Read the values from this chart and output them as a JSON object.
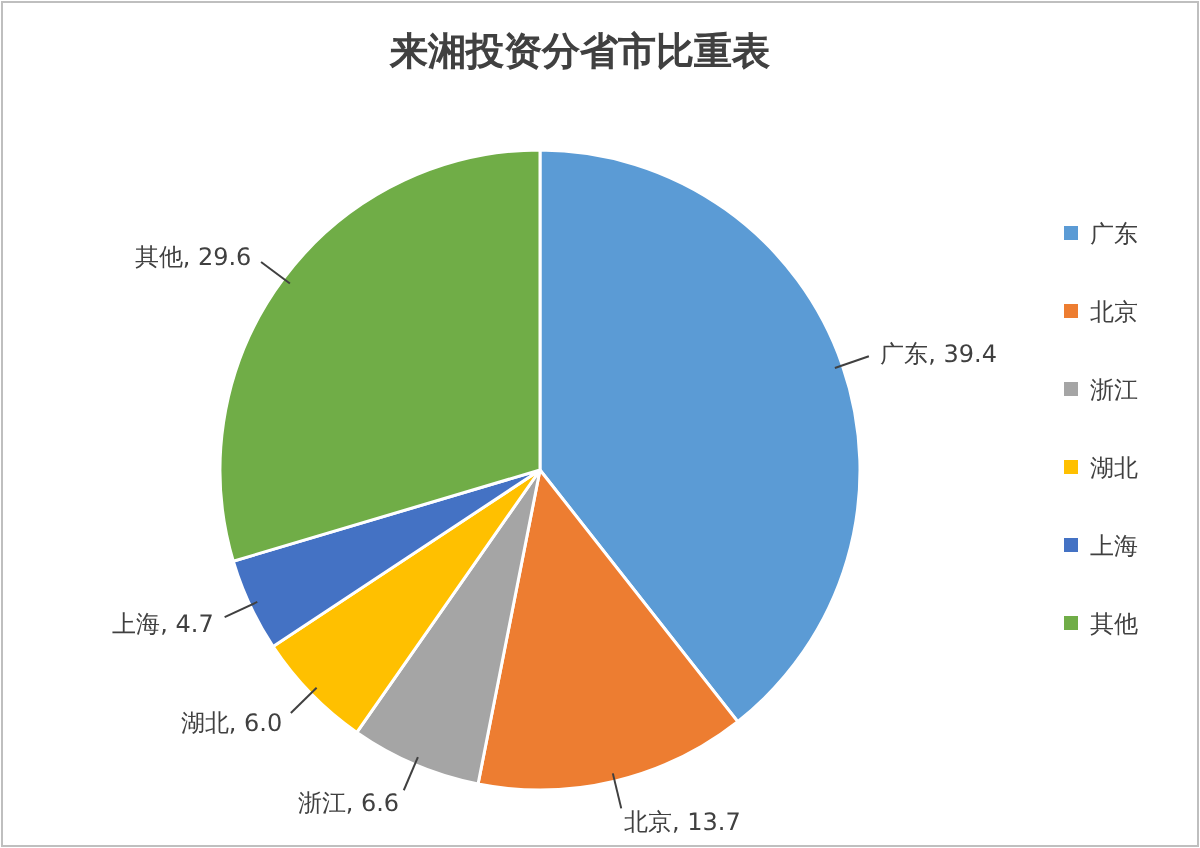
{
  "chart_data": {
    "type": "pie",
    "title": "来湘投资分省市比重表",
    "categories": [
      "广东",
      "北京",
      "浙江",
      "湖北",
      "上海",
      "其他"
    ],
    "values": [
      39.4,
      13.7,
      6.6,
      6.0,
      4.7,
      29.6
    ],
    "colors": [
      "#5b9bd5",
      "#ed7d31",
      "#a5a5a5",
      "#ffc000",
      "#4472c4",
      "#70ad47"
    ],
    "value_labels": [
      "广东, 39.4",
      "北京, 13.7",
      "浙江, 6.6",
      "湖北, 6.0",
      "上海, 4.7",
      "其他, 29.6"
    ],
    "legend": "right"
  }
}
